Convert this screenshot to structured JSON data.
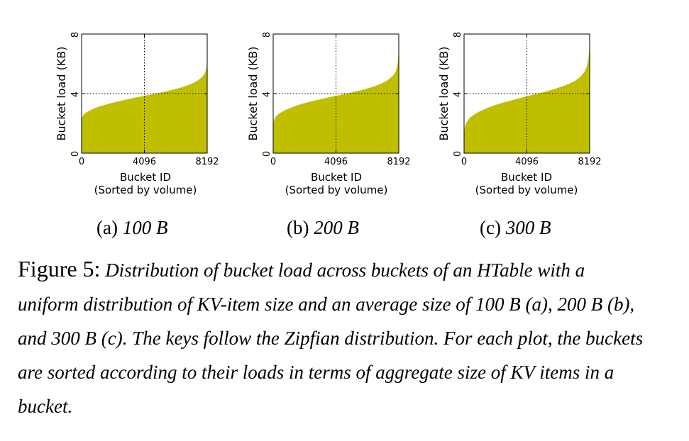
{
  "chart_data": [
    {
      "type": "area",
      "panel_label": "(a)",
      "panel_size": "100 B",
      "ylabel": "Bucket load (KB)",
      "xlabel": "Bucket ID",
      "xlabel_sub": "(Sorted by volume)",
      "xlim": [
        0,
        8192
      ],
      "ylim": [
        0,
        8
      ],
      "xticks": [
        "0",
        "4096",
        "8192"
      ],
      "yticks": [
        "0",
        "4",
        "8"
      ],
      "grid": "dotted reference lines at x=4096 and y=4",
      "fill_color": "#bfbf00",
      "x": [
        0,
        30,
        100,
        250,
        500,
        800,
        1200,
        1600,
        2000,
        2500,
        3000,
        3500,
        4096,
        4600,
        5200,
        5800,
        6400,
        6900,
        7300,
        7600,
        7850,
        8000,
        8100,
        8150,
        8192
      ],
      "y": [
        2.1,
        2.4,
        2.55,
        2.7,
        2.85,
        3.0,
        3.15,
        3.27,
        3.38,
        3.5,
        3.62,
        3.73,
        3.85,
        3.95,
        4.08,
        4.22,
        4.38,
        4.55,
        4.72,
        4.9,
        5.1,
        5.3,
        5.55,
        5.8,
        6.2
      ]
    },
    {
      "type": "area",
      "panel_label": "(b)",
      "panel_size": "200 B",
      "ylabel": "Bucket load (KB)",
      "xlabel": "Bucket ID",
      "xlabel_sub": "(Sorted by volume)",
      "xlim": [
        0,
        8192
      ],
      "ylim": [
        0,
        8
      ],
      "xticks": [
        "0",
        "4096",
        "8192"
      ],
      "yticks": [
        "0",
        "4",
        "8"
      ],
      "grid": "dotted reference lines at x=4096 and y=4",
      "fill_color": "#bfbf00",
      "x": [
        0,
        20,
        80,
        200,
        450,
        800,
        1200,
        1600,
        2000,
        2500,
        3000,
        3500,
        4096,
        4600,
        5200,
        5800,
        6400,
        6900,
        7300,
        7600,
        7850,
        8000,
        8100,
        8150,
        8192
      ],
      "y": [
        1.75,
        2.1,
        2.3,
        2.5,
        2.7,
        2.9,
        3.07,
        3.22,
        3.35,
        3.48,
        3.6,
        3.72,
        3.85,
        3.96,
        4.1,
        4.25,
        4.42,
        4.6,
        4.8,
        5.0,
        5.25,
        5.5,
        5.9,
        6.3,
        7.1
      ]
    },
    {
      "type": "area",
      "panel_label": "(c)",
      "panel_size": "300 B",
      "ylabel": "Bucket load (KB)",
      "xlabel": "Bucket ID",
      "xlabel_sub": "(Sorted by volume)",
      "xlim": [
        0,
        8192
      ],
      "ylim": [
        0,
        8
      ],
      "xticks": [
        "0",
        "4096",
        "8192"
      ],
      "yticks": [
        "0",
        "4",
        "8"
      ],
      "grid": "dotted reference lines at x=4096 and y=4",
      "fill_color": "#bfbf00",
      "x": [
        0,
        15,
        60,
        150,
        350,
        700,
        1100,
        1500,
        2000,
        2500,
        3000,
        3500,
        4096,
        4600,
        5200,
        5800,
        6400,
        6900,
        7300,
        7600,
        7850,
        8000,
        8100,
        8150,
        8192
      ],
      "y": [
        1.0,
        1.5,
        1.8,
        2.05,
        2.35,
        2.62,
        2.85,
        3.03,
        3.22,
        3.38,
        3.52,
        3.66,
        3.82,
        3.95,
        4.1,
        4.28,
        4.48,
        4.68,
        4.9,
        5.15,
        5.45,
        5.8,
        6.3,
        6.8,
        7.5
      ]
    }
  ],
  "caption": {
    "figure_label": "Figure 5:",
    "text": "Distribution of bucket load across buckets of an HTable with a uniform distribution of KV-item size and an average size of 100 B (a), 200 B (b), and 300 B (c). The keys follow the Zipfian distribution. For each plot, the buckets are sorted according to their loads in terms of aggregate size of KV items in a bucket."
  }
}
